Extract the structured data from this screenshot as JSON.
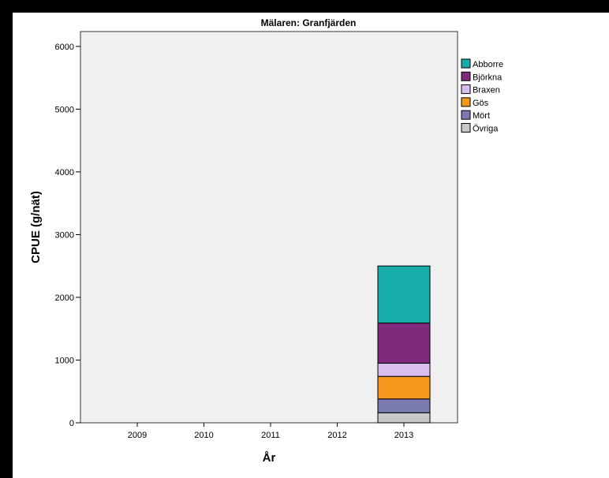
{
  "chart_data": {
    "type": "bar",
    "stacked": true,
    "title": "Mälaren: Granfjärden",
    "xlabel": "År",
    "ylabel": "CPUE (g/nät)",
    "categories": [
      "2009",
      "2010",
      "2011",
      "2012",
      "2013"
    ],
    "ylim": [
      0,
      6300
    ],
    "yticks": [
      "0",
      "1000",
      "2000",
      "3000",
      "4000",
      "5000",
      "6000"
    ],
    "grid": false,
    "legend_position": "right",
    "series": [
      {
        "name": "Övriga",
        "color": "#c8c8c8",
        "values": [
          0,
          0,
          0,
          0,
          160
        ]
      },
      {
        "name": "Mört",
        "color": "#7a7ab0",
        "values": [
          0,
          0,
          0,
          0,
          220
        ]
      },
      {
        "name": "Gös",
        "color": "#f7981d",
        "values": [
          0,
          0,
          0,
          0,
          360
        ]
      },
      {
        "name": "Braxen",
        "color": "#dbbef0",
        "values": [
          0,
          0,
          0,
          0,
          210
        ]
      },
      {
        "name": "Björkna",
        "color": "#7e2b7e",
        "values": [
          0,
          0,
          0,
          0,
          640
        ]
      },
      {
        "name": "Abborre",
        "color": "#18aca8",
        "values": [
          0,
          0,
          0,
          0,
          910
        ]
      }
    ],
    "legend_order": [
      "Abborre",
      "Björkna",
      "Braxen",
      "Gös",
      "Mört",
      "Övriga"
    ]
  }
}
